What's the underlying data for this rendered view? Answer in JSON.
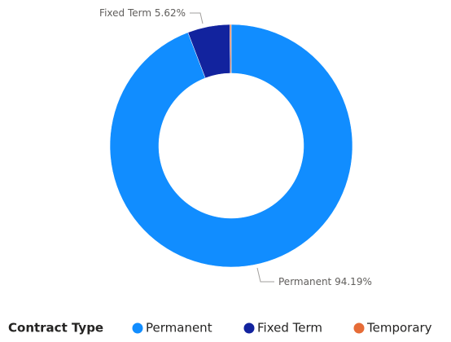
{
  "chart_data": {
    "type": "donut",
    "categories": [
      "Permanent",
      "Fixed Term",
      "Temporary"
    ],
    "values": [
      94.19,
      5.62,
      0.19
    ],
    "value_labels": [
      "94.19%",
      "5.62%",
      null
    ],
    "colors": [
      "#118DFF",
      "#12239E",
      "#E66C37"
    ],
    "legend_title": "Contract Type",
    "legend": "bottom"
  }
}
